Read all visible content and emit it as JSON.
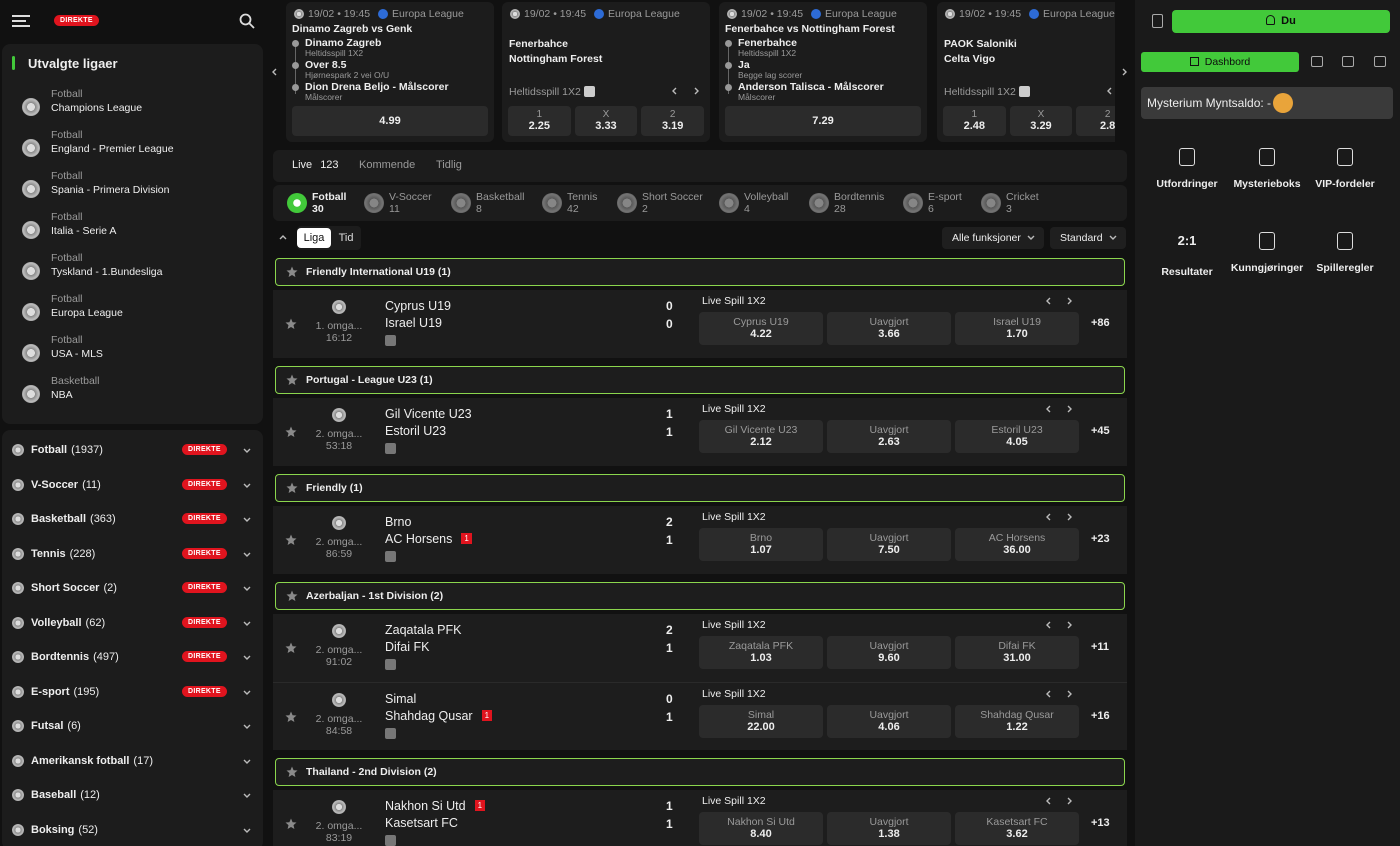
{
  "live_badge": "DIREKTE",
  "featured": [
    {
      "meta": "19/02 • 19:45",
      "league": "Europa League",
      "title": "Dinamo Zagreb vs Genk",
      "selections": [
        {
          "pick": "Dinamo Zagreb",
          "market": "Heltidsspill 1X2"
        },
        {
          "pick": "Over 8.5",
          "market": "Hjørnespark 2 vei O/U"
        },
        {
          "pick": "Dion Drena Beljo - Målscorer",
          "market": "Målscorer"
        }
      ],
      "odds": [
        {
          "odd": "4.99"
        }
      ]
    },
    {
      "meta": "19/02 • 19:45",
      "league": "Europa League",
      "teams": [
        "Fenerbahce",
        "Nottingham Forest"
      ],
      "market": "Heltidsspill 1X2",
      "odds": [
        {
          "label": "1",
          "odd": "2.25"
        },
        {
          "label": "X",
          "odd": "3.33"
        },
        {
          "label": "2",
          "odd": "3.19"
        }
      ]
    },
    {
      "meta": "19/02 • 19:45",
      "league": "Europa League",
      "title": "Fenerbahce vs Nottingham Forest",
      "selections": [
        {
          "pick": "Fenerbahce",
          "market": "Heltidsspill 1X2"
        },
        {
          "pick": "Ja",
          "market": "Begge lag scorer"
        },
        {
          "pick": "Anderson Talisca - Målscorer",
          "market": "Målscorer"
        }
      ],
      "odds": [
        {
          "odd": "7.29"
        }
      ]
    },
    {
      "meta": "19/02 • 19:45",
      "league": "Europa League",
      "teams": [
        "PAOK Saloniki",
        "Celta Vigo"
      ],
      "market": "Heltidsspill 1X2",
      "odds": [
        {
          "label": "1",
          "odd": "2.48"
        },
        {
          "label": "X",
          "odd": "3.29"
        },
        {
          "label": "2",
          "odd": "2.8"
        }
      ]
    }
  ],
  "sidebar": {
    "featured_title": "Utvalgte ligaer",
    "leagues": [
      {
        "sport": "Fotball",
        "name": "Champions League"
      },
      {
        "sport": "Fotball",
        "name": "England - Premier League"
      },
      {
        "sport": "Fotball",
        "name": "Spania - Primera Division"
      },
      {
        "sport": "Fotball",
        "name": "Italia - Serie A"
      },
      {
        "sport": "Fotball",
        "name": "Tyskland - 1.Bundesliga"
      },
      {
        "sport": "Fotball",
        "name": "Europa League"
      },
      {
        "sport": "Fotball",
        "name": "USA - MLS"
      },
      {
        "sport": "Basketball",
        "name": "NBA"
      }
    ],
    "sports": [
      {
        "name": "Fotball",
        "count": "(1937)",
        "live": true
      },
      {
        "name": "V-Soccer",
        "count": "(11)",
        "live": true
      },
      {
        "name": "Basketball",
        "count": "(363)",
        "live": true
      },
      {
        "name": "Tennis",
        "count": "(228)",
        "live": true
      },
      {
        "name": "Short Soccer",
        "count": "(2)",
        "live": true
      },
      {
        "name": "Volleyball",
        "count": "(62)",
        "live": true
      },
      {
        "name": "Bordtennis",
        "count": "(497)",
        "live": true
      },
      {
        "name": "E-sport",
        "count": "(195)",
        "live": true
      },
      {
        "name": "Futsal",
        "count": "(6)",
        "live": false
      },
      {
        "name": "Amerikansk fotball",
        "count": "(17)",
        "live": false
      },
      {
        "name": "Baseball",
        "count": "(12)",
        "live": false
      },
      {
        "name": "Boksing",
        "count": "(52)",
        "live": false
      }
    ]
  },
  "tabs": [
    {
      "label": "Live",
      "count": "123"
    },
    {
      "label": "Kommende"
    },
    {
      "label": "Tidlig"
    }
  ],
  "sport_filter": [
    {
      "name": "Fotball",
      "count": "30"
    },
    {
      "name": "V-Soccer",
      "count": "11"
    },
    {
      "name": "Basketball",
      "count": "8"
    },
    {
      "name": "Tennis",
      "count": "42"
    },
    {
      "name": "Short Soccer",
      "count": "2"
    },
    {
      "name": "Volleyball",
      "count": "4"
    },
    {
      "name": "Bordtennis",
      "count": "28"
    },
    {
      "name": "E-sport",
      "count": "6"
    },
    {
      "name": "Cricket",
      "count": "3"
    }
  ],
  "sort": [
    "Liga",
    "Tid"
  ],
  "dropdowns": [
    "Alle funksjoner",
    "Standard"
  ],
  "groups": [
    {
      "league": "Friendly International U19 (1)",
      "matches": [
        {
          "period": "1. omga...",
          "time": "16:12",
          "home": "Cyprus U19",
          "away": "Israel U19",
          "score": [
            "0",
            "0"
          ],
          "market": "Live Spill 1X2",
          "odds": [
            {
              "label": "Cyprus U19",
              "odd": "4.22"
            },
            {
              "label": "Uavgjort",
              "odd": "3.66"
            },
            {
              "label": "Israel U19",
              "odd": "1.70"
            }
          ],
          "more": "+86"
        }
      ]
    },
    {
      "league": "Portugal - League U23 (1)",
      "matches": [
        {
          "period": "2. omga...",
          "time": "53:18",
          "home": "Gil Vicente U23",
          "away": "Estoril U23",
          "score": [
            "1",
            "1"
          ],
          "market": "Live Spill 1X2",
          "odds": [
            {
              "label": "Gil Vicente U23",
              "odd": "2.12"
            },
            {
              "label": "Uavgjort",
              "odd": "2.63"
            },
            {
              "label": "Estoril U23",
              "odd": "4.05"
            }
          ],
          "more": "+45"
        }
      ]
    },
    {
      "league": "Friendly (1)",
      "matches": [
        {
          "period": "2. omga...",
          "time": "86:59",
          "home": "Brno",
          "away": "AC Horsens",
          "away_red": "1",
          "score": [
            "2",
            "1"
          ],
          "market": "Live Spill 1X2",
          "odds": [
            {
              "label": "Brno",
              "odd": "1.07"
            },
            {
              "label": "Uavgjort",
              "odd": "7.50"
            },
            {
              "label": "AC Horsens",
              "odd": "36.00"
            }
          ],
          "more": "+23"
        }
      ]
    },
    {
      "league": "Azerbaljan - 1st Division (2)",
      "matches": [
        {
          "period": "2. omga...",
          "time": "91:02",
          "home": "Zaqatala PFK",
          "away": "Difai FK",
          "score": [
            "2",
            "1"
          ],
          "market": "Live Spill 1X2",
          "odds": [
            {
              "label": "Zaqatala PFK",
              "odd": "1.03"
            },
            {
              "label": "Uavgjort",
              "odd": "9.60"
            },
            {
              "label": "Difai FK",
              "odd": "31.00"
            }
          ],
          "more": "+11"
        },
        {
          "period": "2. omga...",
          "time": "84:58",
          "home": "Simal",
          "away": "Shahdag Qusar",
          "away_red": "1",
          "score": [
            "0",
            "1"
          ],
          "market": "Live Spill 1X2",
          "odds": [
            {
              "label": "Simal",
              "odd": "22.00"
            },
            {
              "label": "Uavgjort",
              "odd": "4.06"
            },
            {
              "label": "Shahdag Qusar",
              "odd": "1.22"
            }
          ],
          "more": "+16"
        }
      ]
    },
    {
      "league": "Thailand - 2nd Division (2)",
      "matches": [
        {
          "period": "2. omga...",
          "time": "83:19",
          "home": "Nakhon Si Utd",
          "home_red": "1",
          "away": "Kasetsart FC",
          "score": [
            "1",
            "1"
          ],
          "market": "Live Spill 1X2",
          "odds": [
            {
              "label": "Nakhon Si Utd",
              "odd": "8.40"
            },
            {
              "label": "Uavgjort",
              "odd": "1.38"
            },
            {
              "label": "Kasetsart FC",
              "odd": "3.62"
            }
          ],
          "more": "+13"
        }
      ]
    }
  ],
  "right": {
    "user": "Du",
    "dashboard": "Dashbord",
    "coins": "Mysterium Myntsaldo: -",
    "tiles": [
      {
        "label": "Utfordringer"
      },
      {
        "label": "Mysterieboks"
      },
      {
        "label": "VIP-fordeler"
      },
      {
        "label": "Resultater",
        "icon_text": "2:1"
      },
      {
        "label": "Kunngjøringer"
      },
      {
        "label": "Spilleregler"
      }
    ]
  }
}
